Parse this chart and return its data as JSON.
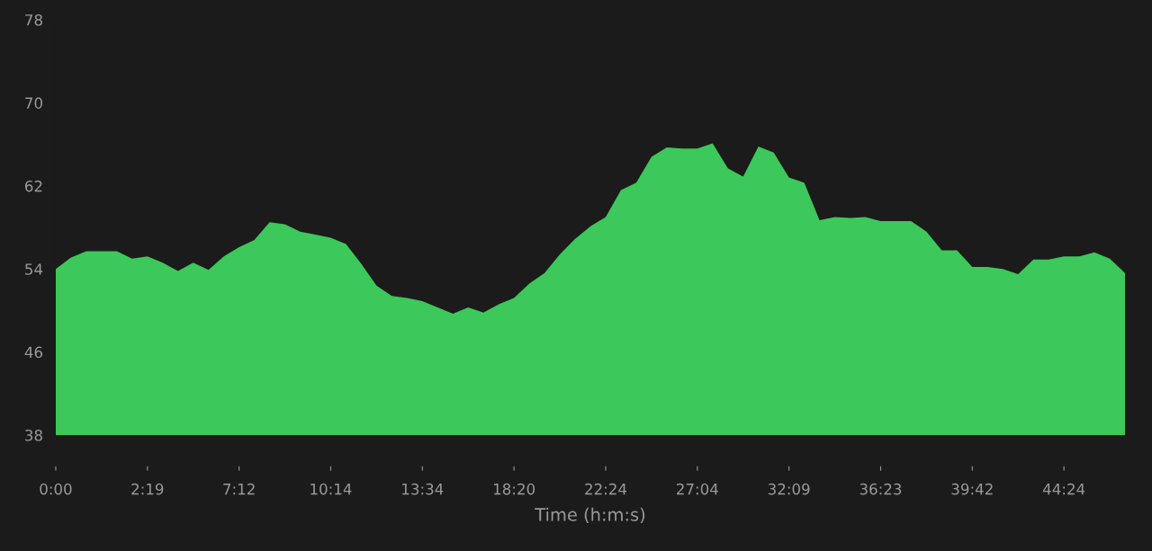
{
  "chart_data": {
    "type": "area",
    "xlabel": "Time (h:m:s)",
    "categories": [
      "0:00",
      null,
      null,
      null,
      null,
      null,
      "2:19",
      null,
      null,
      null,
      null,
      null,
      "7:12",
      null,
      null,
      null,
      null,
      null,
      "10:14",
      null,
      null,
      null,
      null,
      null,
      "13:34",
      null,
      null,
      null,
      null,
      null,
      "18:20",
      null,
      null,
      null,
      null,
      null,
      "22:24",
      null,
      null,
      null,
      null,
      null,
      "27:04",
      null,
      null,
      null,
      null,
      null,
      "32:09",
      null,
      null,
      null,
      null,
      null,
      "36:23",
      null,
      null,
      null,
      null,
      null,
      "39:42",
      null,
      null,
      null,
      null,
      null,
      "44:24",
      null,
      null,
      null,
      null
    ],
    "series": [
      {
        "color": "#3cc85a",
        "values": [
          54.0,
          55.1,
          55.7,
          55.7,
          55.7,
          55.0,
          55.2,
          54.6,
          53.8,
          54.6,
          53.9,
          55.2,
          56.1,
          56.8,
          58.5,
          58.3,
          57.6,
          57.3,
          57.0,
          56.4,
          54.5,
          52.4,
          51.4,
          51.2,
          50.9,
          50.3,
          49.7,
          50.3,
          49.8,
          50.6,
          51.2,
          52.6,
          53.6,
          55.4,
          56.9,
          58.1,
          59.0,
          61.6,
          62.3,
          64.8,
          65.7,
          65.6,
          65.6,
          66.1,
          63.7,
          62.9,
          65.8,
          65.2,
          62.8,
          62.3,
          58.7,
          59.0,
          58.9,
          59.0,
          58.6,
          58.6,
          58.6,
          57.6,
          55.8,
          55.8,
          54.2,
          54.2,
          54.0,
          53.5,
          54.9,
          54.9,
          55.2,
          55.2,
          55.6,
          55.0,
          53.6
        ]
      }
    ],
    "ylim": [
      38,
      78
    ],
    "yticks": [
      38,
      46,
      54,
      62,
      70,
      78
    ],
    "grid": false,
    "legend": false
  }
}
